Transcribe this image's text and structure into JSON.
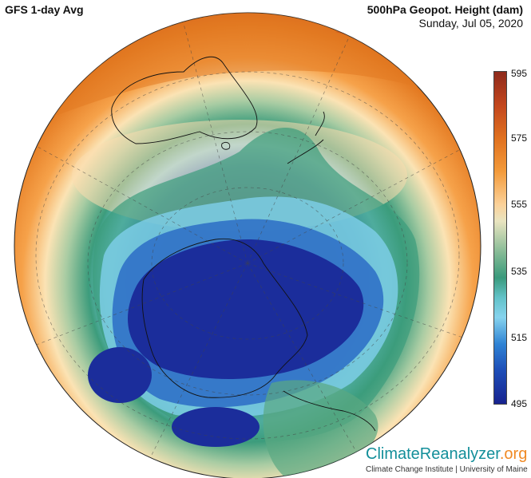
{
  "header": {
    "left_title": "GFS 1-day Avg",
    "right_title": "500hPa Geopot. Height (dam)",
    "right_subtitle": "Sunday, Jul 05, 2020"
  },
  "colorbar": {
    "min": 495,
    "max": 595,
    "tick_labels": [
      "595",
      "575",
      "555",
      "535",
      "515",
      "495"
    ],
    "colors": [
      "#8e2a1c",
      "#e0711f",
      "#fbd199",
      "#3a9a7c",
      "#86d3ee",
      "#2f83d4",
      "#17238f"
    ]
  },
  "branding": {
    "name_part1": "ClimateReanalyzer",
    "name_part2": ".org",
    "subtitle": "Climate Change Institute | University of Maine"
  },
  "map": {
    "projection": "orthographic",
    "hemisphere": "southern",
    "regions": [
      "Antarctica",
      "Australia",
      "New Zealand",
      "South America"
    ]
  }
}
